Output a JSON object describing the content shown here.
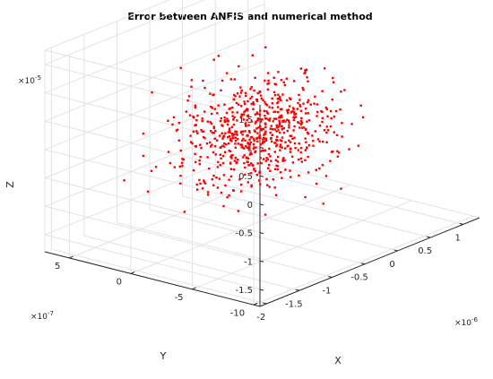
{
  "chart_data": {
    "type": "scatter",
    "projection": "3d",
    "title": "Error between ANFIS and numerical method",
    "xlabel": "X",
    "ylabel": "Y",
    "zlabel": "Z",
    "grid": true,
    "marker_color": "#ff0000",
    "x_axis": {
      "multiplier": "×10",
      "exponent": "-6",
      "range": [
        -2.1,
        1.25
      ],
      "ticks": [
        -2,
        -1.5,
        -1,
        -0.5,
        0,
        0.5,
        1
      ],
      "tick_labels": [
        "-2",
        "-1.5",
        "-1",
        "-0.5",
        "0",
        "0.5",
        "1"
      ]
    },
    "y_axis": {
      "multiplier": "×10",
      "exponent": "-7",
      "range": [
        -10.5,
        7
      ],
      "ticks": [
        -10,
        -5,
        0,
        5
      ],
      "tick_labels": [
        "-10",
        "-5",
        "0",
        "5"
      ]
    },
    "z_axis": {
      "multiplier": "×10",
      "exponent": "-5",
      "range": [
        -1.8,
        1.75
      ],
      "ticks": [
        -1.5,
        -1,
        -0.5,
        0,
        0.5,
        1,
        1.5
      ],
      "tick_labels": [
        "-1.5",
        "-1",
        "-0.5",
        "0",
        "0.5",
        "1",
        "1.5"
      ]
    },
    "point_count": 700,
    "distribution": "approximately normal, centred near x=-0.5e-6, y=-2e-7, z=0"
  }
}
